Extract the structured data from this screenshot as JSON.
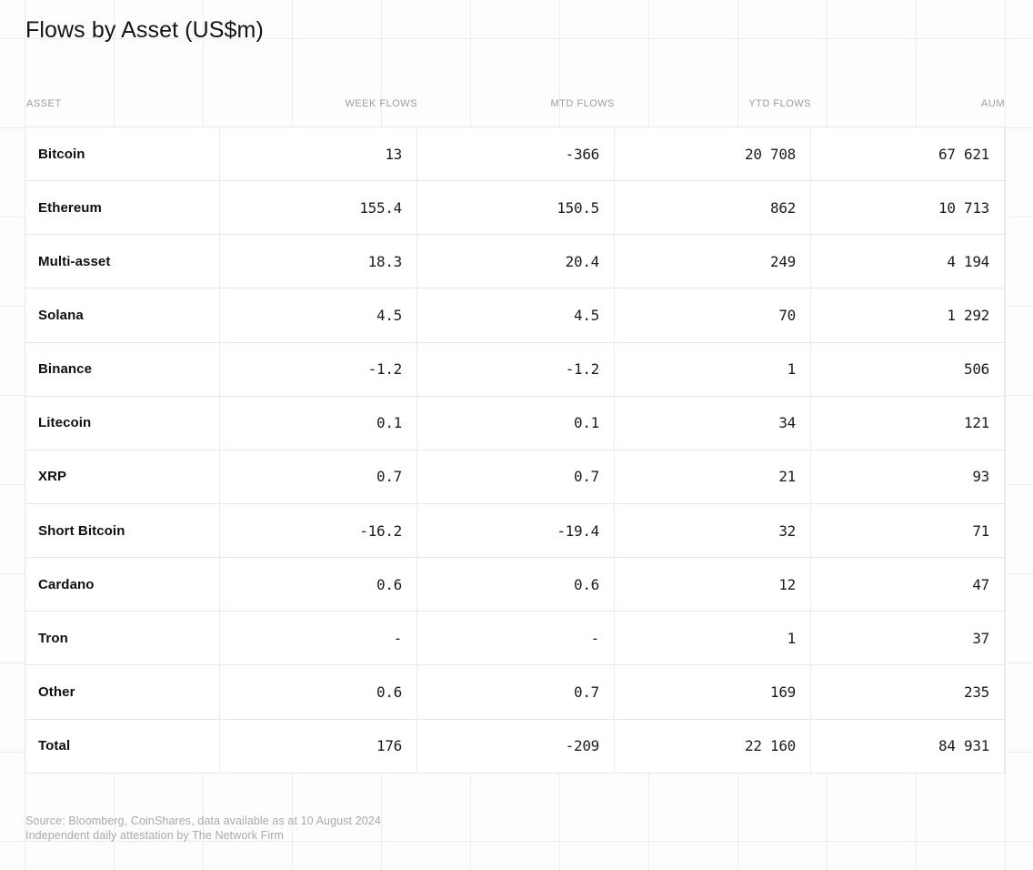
{
  "title": "Flows by Asset (US$m)",
  "table": {
    "columns": [
      "ASSET",
      "WEEK FLOWS",
      "MTD FLOWS",
      "YTD FLOWS",
      "AUM"
    ],
    "rows": [
      {
        "asset": "Bitcoin",
        "week": "13",
        "mtd": "-366",
        "ytd": "20 708",
        "aum": "67 621"
      },
      {
        "asset": "Ethereum",
        "week": "155.4",
        "mtd": "150.5",
        "ytd": "862",
        "aum": "10 713"
      },
      {
        "asset": "Multi-asset",
        "week": "18.3",
        "mtd": "20.4",
        "ytd": "249",
        "aum": "4 194"
      },
      {
        "asset": "Solana",
        "week": "4.5",
        "mtd": "4.5",
        "ytd": "70",
        "aum": "1 292"
      },
      {
        "asset": "Binance",
        "week": "-1.2",
        "mtd": "-1.2",
        "ytd": "1",
        "aum": "506"
      },
      {
        "asset": "Litecoin",
        "week": "0.1",
        "mtd": "0.1",
        "ytd": "34",
        "aum": "121"
      },
      {
        "asset": "XRP",
        "week": "0.7",
        "mtd": "0.7",
        "ytd": "21",
        "aum": "93"
      },
      {
        "asset": "Short Bitcoin",
        "week": "-16.2",
        "mtd": "-19.4",
        "ytd": "32",
        "aum": "71"
      },
      {
        "asset": "Cardano",
        "week": "0.6",
        "mtd": "0.6",
        "ytd": "12",
        "aum": "47"
      },
      {
        "asset": "Tron",
        "week": "-",
        "mtd": "-",
        "ytd": "1",
        "aum": "37"
      },
      {
        "asset": "Other",
        "week": "0.6",
        "mtd": "0.7",
        "ytd": "169",
        "aum": "235"
      },
      {
        "asset": "Total",
        "week": "176",
        "mtd": "-209",
        "ytd": "22 160",
        "aum": "84 931"
      }
    ]
  },
  "footer": {
    "line1": "Source: Bloomberg, CoinShares, data available as at 10 August 2024",
    "line2": "Independent daily attestation by The Network Firm"
  }
}
